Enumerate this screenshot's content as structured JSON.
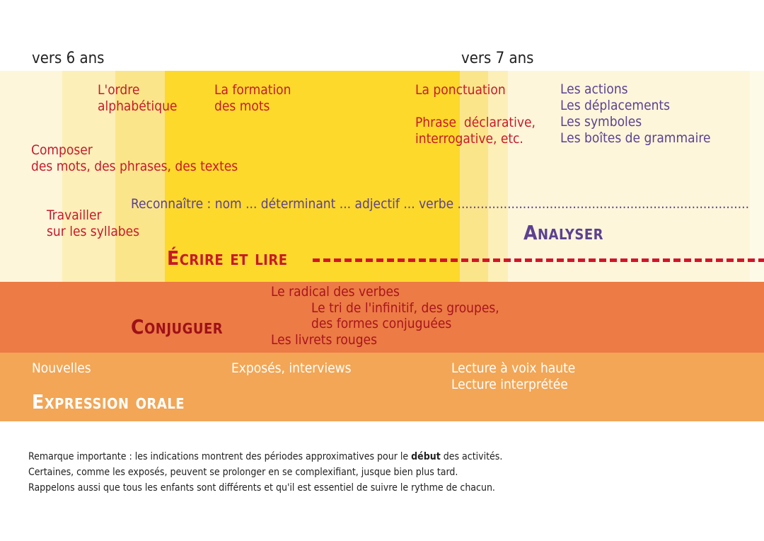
{
  "ages": {
    "left": "vers 6 ans",
    "right": "vers 7 ans"
  },
  "colors": {
    "pale": "#fdf6db",
    "light": "#fcefb8",
    "mid": "#fbe58a",
    "yellow": "#fcd92b",
    "orange": "#ec7b45",
    "light_orange": "#f2a656",
    "red_text": "#c8192b",
    "purple_text": "#5c4190"
  },
  "ecrire": {
    "title": "Écrire et lire",
    "ordre": [
      "L'ordre",
      "alphabétique"
    ],
    "formation": [
      "La formation",
      "des mots"
    ],
    "ponctuation": "La ponctuation",
    "phrase": [
      "Phrase  déclarative,",
      "interrogative, etc."
    ],
    "composer": [
      "Composer",
      "des mots, des phrases, des textes"
    ],
    "syllabes": [
      "Travailler",
      "sur les syllabes"
    ]
  },
  "analyser": {
    "title": "Analyser",
    "items": [
      "Les actions",
      "Les déplacements",
      "Les symboles",
      "Les boîtes de grammaire"
    ],
    "reconnaitre": "Reconnaître : nom ... déterminant ... adjectif ... verbe ............................................................................"
  },
  "conjuguer": {
    "title": "Conjuguer",
    "lines": [
      "Le radical des verbes",
      "Le tri de l'infinitif, des groupes,",
      "des formes conjuguées",
      "Les livrets rouges"
    ]
  },
  "oral": {
    "title": "Expression orale",
    "nouvelles": "Nouvelles",
    "exposes": "Exposés, interviews",
    "lecture": [
      "Lecture à voix haute",
      "Lecture interprétée"
    ]
  },
  "note": {
    "line1_pre": "Remarque importante : les indications montrent des périodes approximatives pour le ",
    "line1_bold": "début",
    "line1_post": " des activités.",
    "line2": "Certaines, comme les exposés, peuvent se prolonger en se complexifiant, jusque bien plus tard.",
    "line3": "Rappelons aussi que tous les enfants sont différents et qu'il est essentiel de suivre le rythme de chacun."
  }
}
